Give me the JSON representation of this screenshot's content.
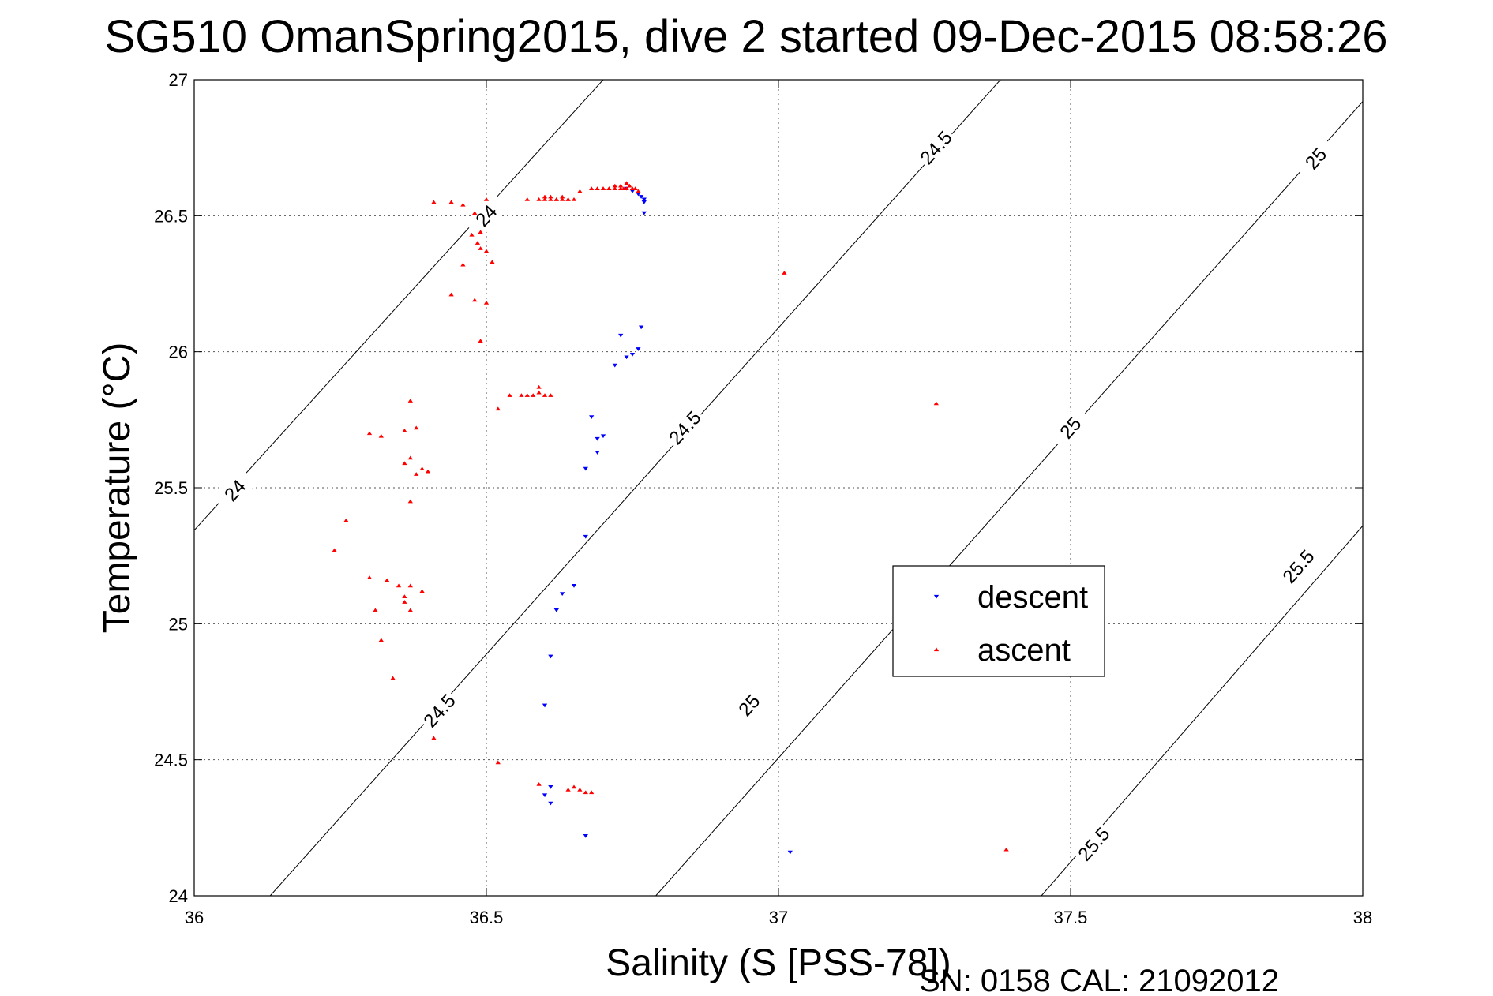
{
  "chart_data": {
    "type": "scatter",
    "title": "SG510 OmanSpring2015, dive 2 started 09-Dec-2015 08:58:26",
    "xlabel": "Salinity (S [PSS-78])",
    "ylabel": "Temperature (°C)",
    "xlim": [
      36,
      38
    ],
    "ylim": [
      24,
      27
    ],
    "xticks": [
      "36",
      "36.5",
      "37",
      "37.5",
      "38"
    ],
    "yticks": [
      "24",
      "24.5",
      "25",
      "25.5",
      "26",
      "26.5",
      "27"
    ],
    "grid": true,
    "legend_position": "center-right",
    "density_contours": [
      {
        "level": "24",
        "points": [
          [
            35.99,
            25.32
          ],
          [
            36.7,
            27.0
          ]
        ],
        "labels": [
          [
            36.07,
            25.49
          ],
          [
            36.5,
            26.5
          ]
        ]
      },
      {
        "level": "24.5",
        "points": [
          [
            36.13,
            24.0
          ],
          [
            37.38,
            27.0
          ]
        ],
        "labels": [
          [
            36.42,
            24.68
          ],
          [
            36.84,
            25.72
          ],
          [
            37.27,
            26.75
          ]
        ]
      },
      {
        "level": "25",
        "points": [
          [
            36.79,
            24.0
          ],
          [
            38.0,
            26.92
          ]
        ],
        "labels": [
          [
            36.95,
            24.7
          ],
          [
            37.5,
            25.72
          ],
          [
            37.92,
            26.71
          ]
        ]
      },
      {
        "level": "25.5",
        "points": [
          [
            37.45,
            24.0
          ],
          [
            38.0,
            25.36
          ]
        ],
        "labels": [
          [
            37.54,
            24.19
          ],
          [
            37.89,
            25.21
          ]
        ]
      }
    ],
    "series": [
      {
        "name": "descent",
        "color": "#0000ff",
        "marker": "triangle-down",
        "x": [
          36.74,
          36.75,
          36.76,
          36.765,
          36.77,
          36.77,
          36.77,
          36.765,
          36.73,
          36.75,
          36.76,
          36.72,
          36.74,
          36.68,
          36.7,
          36.69,
          36.69,
          36.67,
          36.67,
          36.65,
          36.63,
          36.62,
          36.61,
          36.6,
          36.61,
          36.6,
          36.61,
          36.67,
          37.02
        ],
        "y": [
          26.6,
          26.59,
          26.58,
          26.57,
          26.56,
          26.55,
          26.51,
          26.09,
          26.06,
          25.99,
          26.01,
          25.95,
          25.98,
          25.76,
          25.69,
          25.68,
          25.63,
          25.57,
          25.32,
          25.14,
          25.11,
          25.05,
          24.88,
          24.7,
          24.4,
          24.37,
          24.34,
          24.22,
          24.16
        ]
      },
      {
        "name": "ascent",
        "color": "#ff0000",
        "marker": "triangle-up",
        "x": [
          36.7,
          36.71,
          36.72,
          36.73,
          36.735,
          36.74,
          36.745,
          36.75,
          36.755,
          36.76,
          36.68,
          36.69,
          36.7,
          36.71,
          36.72,
          36.73,
          36.74,
          36.75,
          36.66,
          36.6,
          36.61,
          36.62,
          36.63,
          36.64,
          36.65,
          36.57,
          36.59,
          36.6,
          36.61,
          36.62,
          36.63,
          36.64,
          36.41,
          36.44,
          36.46,
          36.48,
          36.5,
          36.49,
          36.485,
          36.475,
          36.49,
          36.5,
          36.51,
          36.46,
          36.44,
          36.48,
          36.5,
          36.49,
          36.52,
          36.54,
          36.56,
          36.57,
          36.58,
          36.59,
          36.6,
          36.61,
          36.59,
          36.37,
          36.32,
          36.3,
          36.36,
          36.38,
          36.37,
          36.39,
          36.38,
          36.4,
          36.36,
          36.37,
          36.26,
          36.24,
          36.3,
          36.33,
          36.35,
          36.37,
          36.36,
          36.39,
          36.36,
          36.37,
          36.31,
          36.32,
          36.34,
          36.41,
          36.52,
          36.59,
          36.64,
          36.65,
          36.66,
          36.67,
          36.68,
          37.01,
          37.27,
          37.39
        ],
        "y": [
          26.6,
          26.6,
          26.61,
          26.61,
          26.6,
          26.62,
          26.61,
          26.6,
          26.6,
          26.59,
          26.6,
          26.6,
          26.6,
          26.6,
          26.6,
          26.6,
          26.6,
          26.6,
          26.59,
          26.57,
          26.57,
          26.56,
          26.57,
          26.56,
          26.56,
          26.56,
          26.56,
          26.56,
          26.56,
          26.56,
          26.56,
          26.56,
          26.55,
          26.55,
          26.54,
          26.51,
          26.56,
          26.44,
          26.4,
          26.43,
          26.38,
          26.37,
          26.33,
          26.32,
          26.21,
          26.19,
          26.18,
          26.04,
          25.79,
          25.84,
          25.84,
          25.84,
          25.84,
          25.85,
          25.84,
          25.84,
          25.87,
          25.82,
          25.69,
          25.7,
          25.71,
          25.72,
          25.61,
          25.57,
          25.55,
          25.56,
          25.59,
          25.45,
          25.38,
          25.27,
          25.17,
          25.16,
          25.14,
          25.14,
          25.1,
          25.12,
          25.08,
          25.05,
          25.05,
          24.94,
          24.8,
          24.58,
          24.49,
          24.41,
          24.39,
          24.4,
          24.39,
          24.38,
          24.38,
          26.29,
          25.81,
          24.17
        ]
      }
    ],
    "legend": [
      "descent",
      "ascent"
    ]
  },
  "footer": "SN: 0158  CAL: 21092012"
}
